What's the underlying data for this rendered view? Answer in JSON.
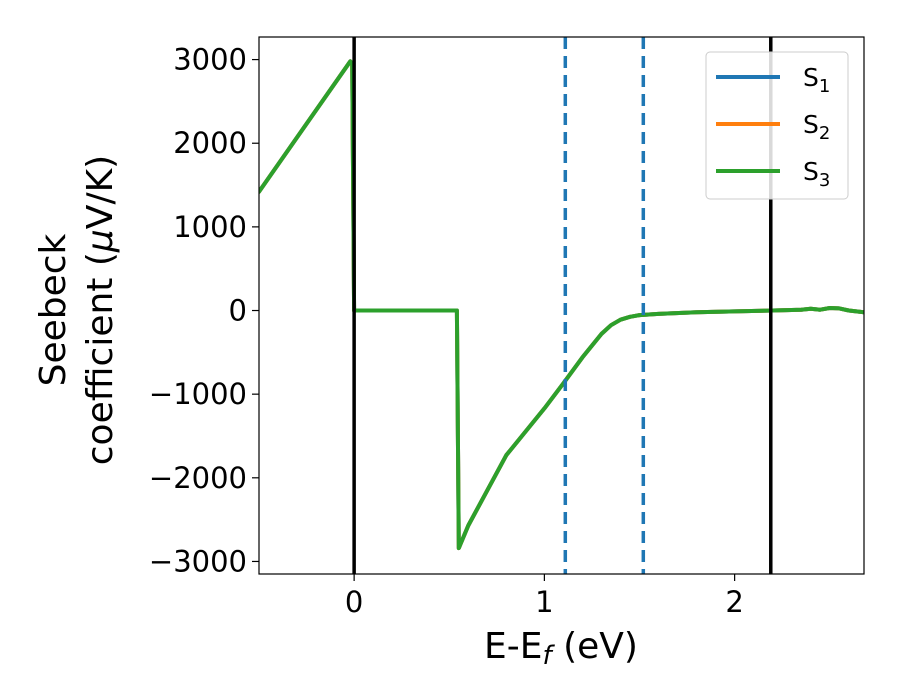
{
  "chart_data": {
    "type": "line",
    "xlabel": {
      "main": "E-E",
      "sub": "f",
      "suffix": " (eV)"
    },
    "ylabel": {
      "line1": "Seebeck",
      "line2_prefix": "coefficient  (",
      "mu": "μ",
      "line2_suffix": "V/K)"
    },
    "xlim": [
      -0.5,
      2.68
    ],
    "ylim": [
      -3150,
      3270
    ],
    "xticks": [
      0,
      1,
      2
    ],
    "xtick_labels": [
      "0",
      "1",
      "2"
    ],
    "yticks": [
      -3000,
      -2000,
      -1000,
      0,
      1000,
      2000,
      3000
    ],
    "ytick_labels": [
      "−3000",
      "−2000",
      "−1000",
      "0",
      "1000",
      "2000",
      "3000"
    ],
    "grid": false,
    "legend_position": "top-right",
    "series": [
      {
        "name": {
          "base": "S",
          "sub": "1"
        },
        "color": "#1f77b4",
        "x": [
          -0.5,
          -0.02,
          -0.01,
          0.0,
          0.54,
          0.55,
          0.6,
          0.8,
          1.0,
          1.1,
          1.2,
          1.3,
          1.35,
          1.4,
          1.45,
          1.5,
          1.6,
          1.8,
          2.0,
          2.2,
          2.35,
          2.4,
          2.45,
          2.5,
          2.55,
          2.6,
          2.68
        ],
        "y": [
          1420,
          2980,
          2950,
          0,
          0,
          -2840,
          -2570,
          -1730,
          -1170,
          -870,
          -560,
          -280,
          -175,
          -110,
          -75,
          -55,
          -40,
          -20,
          -10,
          0,
          10,
          20,
          10,
          30,
          25,
          0,
          -20
        ]
      },
      {
        "name": {
          "base": "S",
          "sub": "2"
        },
        "color": "#ff7f0e",
        "x": [
          -0.5,
          -0.02,
          -0.01,
          0.0,
          0.54,
          0.55,
          0.6,
          0.8,
          1.0,
          1.1,
          1.2,
          1.3,
          1.35,
          1.4,
          1.45,
          1.5,
          1.6,
          1.8,
          2.0,
          2.2,
          2.35,
          2.4,
          2.45,
          2.5,
          2.55,
          2.6,
          2.68
        ],
        "y": [
          1420,
          2980,
          2950,
          0,
          0,
          -2840,
          -2570,
          -1730,
          -1170,
          -870,
          -560,
          -280,
          -175,
          -110,
          -75,
          -55,
          -40,
          -20,
          -10,
          0,
          10,
          20,
          10,
          30,
          25,
          0,
          -20
        ]
      },
      {
        "name": {
          "base": "S",
          "sub": "3"
        },
        "color": "#2ca02c",
        "x": [
          -0.5,
          -0.02,
          -0.01,
          0.0,
          0.54,
          0.55,
          0.6,
          0.8,
          1.0,
          1.1,
          1.2,
          1.3,
          1.35,
          1.4,
          1.45,
          1.5,
          1.6,
          1.8,
          2.0,
          2.2,
          2.35,
          2.4,
          2.45,
          2.5,
          2.55,
          2.6,
          2.68
        ],
        "y": [
          1420,
          2980,
          2950,
          0,
          0,
          -2840,
          -2570,
          -1730,
          -1170,
          -870,
          -560,
          -280,
          -175,
          -110,
          -75,
          -55,
          -40,
          -20,
          -10,
          0,
          10,
          20,
          10,
          30,
          25,
          0,
          -20
        ]
      }
    ],
    "vlines": [
      {
        "x": 0.0,
        "color": "#000000",
        "style": "solid"
      },
      {
        "x": 2.19,
        "color": "#000000",
        "style": "solid"
      },
      {
        "x": 1.11,
        "color": "#1f77b4",
        "style": "dashed"
      },
      {
        "x": 1.52,
        "color": "#1f77b4",
        "style": "dashed"
      }
    ]
  }
}
